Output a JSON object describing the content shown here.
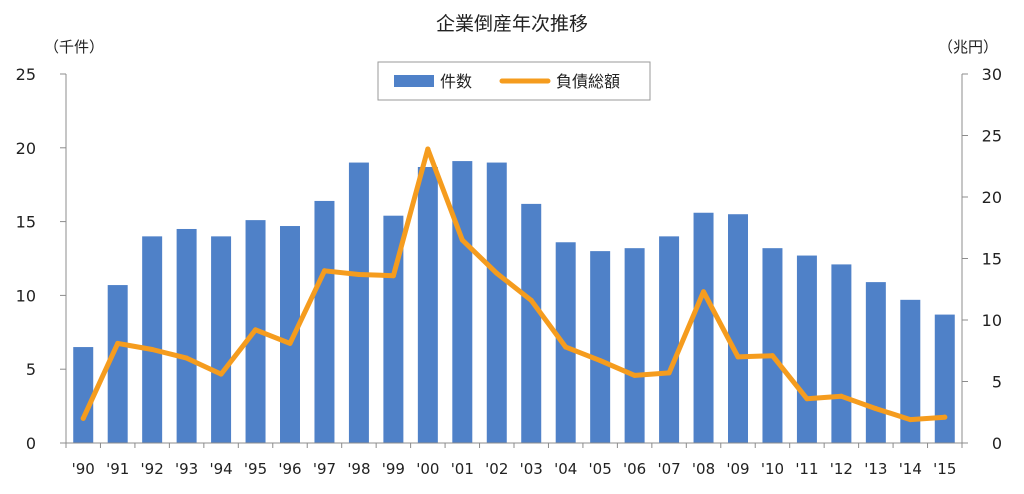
{
  "chart_data": {
    "type": "bar+line",
    "title": "企業倒産年次推移",
    "left_axis_unit": "（千件）",
    "right_axis_unit": "（兆円）",
    "categories": [
      "'90",
      "'91",
      "'92",
      "'93",
      "'94",
      "'95",
      "'96",
      "'97",
      "'98",
      "'99",
      "'00",
      "'01",
      "'02",
      "'03",
      "'04",
      "'05",
      "'06",
      "'07",
      "'08",
      "'09",
      "'10",
      "'11",
      "'12",
      "'13",
      "'14",
      "'15"
    ],
    "series": [
      {
        "name": "件数",
        "type": "bar",
        "axis": "left",
        "color": "#4f81c8",
        "values": [
          6.5,
          10.7,
          14.0,
          14.5,
          14.0,
          15.1,
          14.7,
          16.4,
          19.0,
          15.4,
          18.7,
          19.1,
          19.0,
          16.2,
          13.6,
          13.0,
          13.2,
          14.0,
          15.6,
          15.5,
          13.2,
          12.7,
          12.1,
          10.9,
          9.7,
          8.7
        ]
      },
      {
        "name": "負債総額",
        "type": "line",
        "axis": "right",
        "color": "#f59c1e",
        "values": [
          2.0,
          8.1,
          7.6,
          6.9,
          5.6,
          9.2,
          8.1,
          14.0,
          13.7,
          13.6,
          23.9,
          16.5,
          13.8,
          11.6,
          7.8,
          6.7,
          5.5,
          5.7,
          12.3,
          7.0,
          7.1,
          3.6,
          3.8,
          2.8,
          1.9,
          2.1
        ]
      }
    ],
    "left_ylim": [
      0,
      25
    ],
    "left_ticks": [
      "0",
      "5",
      "10",
      "15",
      "20",
      "25"
    ],
    "right_ylim": [
      0,
      30
    ],
    "right_ticks": [
      "0",
      "5",
      "10",
      "15",
      "20",
      "25",
      "30"
    ],
    "grid": false,
    "legend_position": "top-center"
  }
}
